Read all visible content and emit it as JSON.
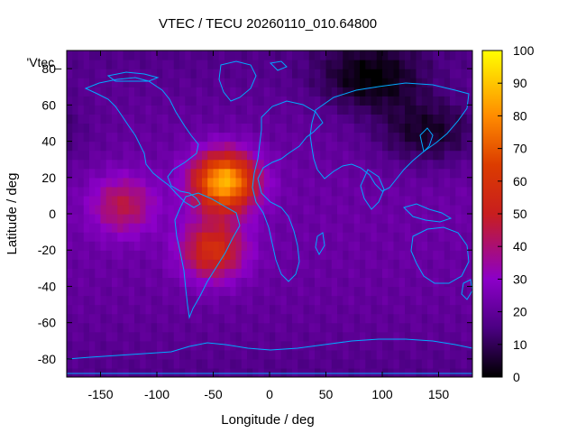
{
  "chart_data": {
    "type": "heatmap",
    "title": "VTEC / TECU 20260110_010.64800",
    "xlabel": "Longitude / deg",
    "ylabel": "Latitude / deg",
    "legend_key": "'Vtec_",
    "xlim": [
      -180,
      180
    ],
    "ylim": [
      -90,
      90
    ],
    "x_ticks": [
      -150,
      -100,
      -50,
      0,
      50,
      100,
      150
    ],
    "y_ticks": [
      -80,
      -60,
      -40,
      -20,
      0,
      20,
      40,
      60,
      80
    ],
    "colorbar": {
      "range": [
        0,
        100
      ],
      "ticks": [
        0,
        10,
        20,
        30,
        40,
        50,
        60,
        70,
        80,
        90,
        100
      ]
    },
    "grid": false,
    "coastline_color": "#00aaff",
    "colormap": [
      "#000000",
      "#4b0082",
      "#8c00c8",
      "#dc2800",
      "#ff8c00",
      "#ffff00"
    ],
    "features": [
      {
        "name": "background",
        "value": 22
      },
      {
        "name": "atlantic-equatorial-anomaly-south",
        "lon": -50,
        "lat": -20,
        "value": 58
      },
      {
        "name": "atlantic-equatorial-anomaly-north",
        "lon": -40,
        "lat": 18,
        "value": 88
      },
      {
        "name": "pacific-crest",
        "lon": -130,
        "lat": 5,
        "value": 45
      },
      {
        "name": "north-polar-depletion",
        "lon": 90,
        "lat": 75,
        "value": 4
      },
      {
        "name": "asia-low",
        "lon": 140,
        "lat": 45,
        "value": 6
      }
    ]
  }
}
